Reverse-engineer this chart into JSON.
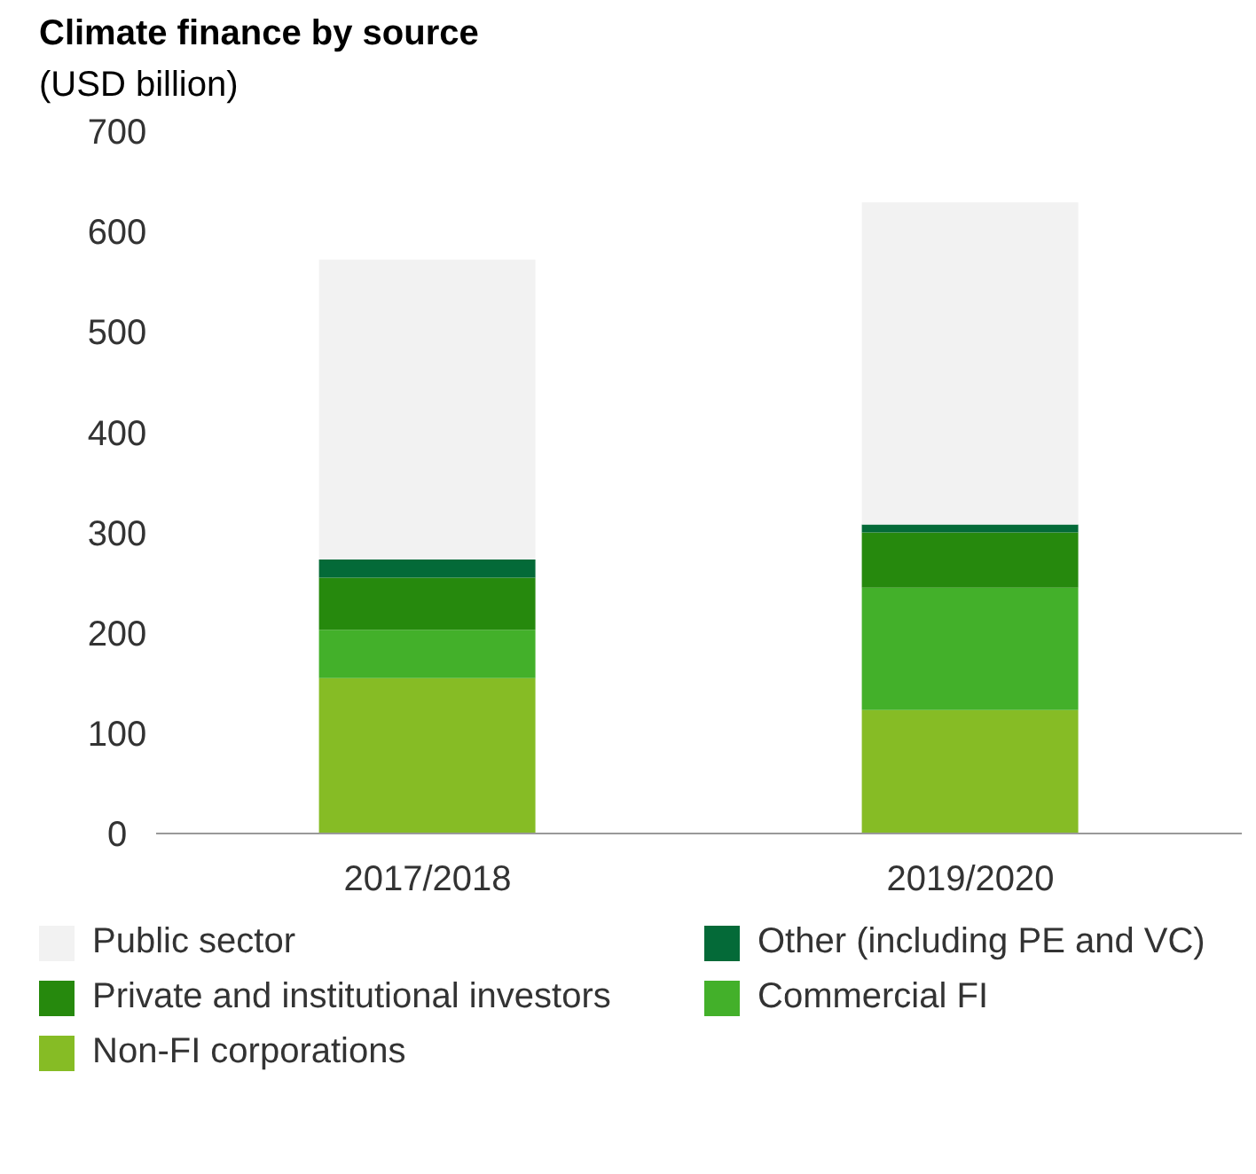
{
  "chart_data": {
    "type": "bar",
    "title": "Climate finance by source",
    "ylabel": "(USD billion)",
    "categories": [
      "2017/2018",
      "2019/2020"
    ],
    "stacked": true,
    "ylim": [
      0,
      700
    ],
    "yticks": [
      0,
      100,
      200,
      300,
      400,
      500,
      600,
      700
    ],
    "grid": false,
    "legend": "bottom",
    "series": [
      {
        "name": "Non-FI corporations",
        "color": "#86bc25",
        "values": [
          155,
          123
        ]
      },
      {
        "name": "Commercial FI",
        "color": "#43b02a",
        "values": [
          48,
          122
        ]
      },
      {
        "name": "Private and institutional investors",
        "color": "#26890d",
        "values": [
          52,
          55
        ]
      },
      {
        "name": "Other (including PE and VC)",
        "color": "#046a38",
        "values": [
          18,
          8
        ]
      },
      {
        "name": "Public sector",
        "color": "#f2f2f2",
        "values": [
          299,
          321
        ]
      }
    ]
  }
}
